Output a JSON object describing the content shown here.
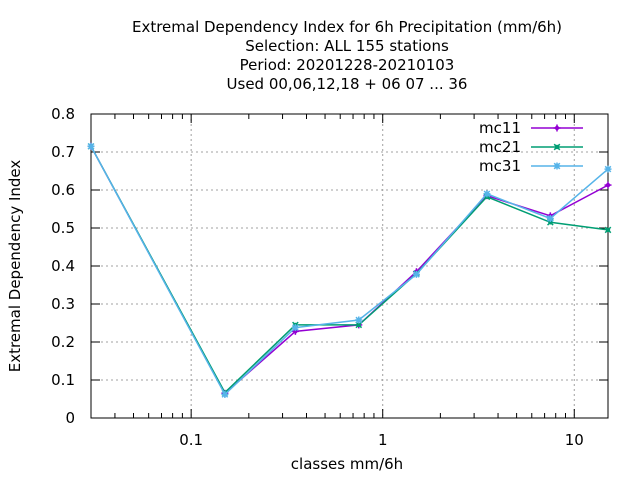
{
  "chart_data": {
    "type": "line",
    "title_lines": [
      "Extremal Dependency Index  for 6h Precipitation (mm/6h)",
      "Selection: ALL    155 stations",
      "Period: 20201228-20210103",
      "Used  00,06,12,18 + 06 07 ... 36"
    ],
    "xlabel": "classes mm/6h",
    "ylabel": "Extremal Dependency Index",
    "x_scale": "log",
    "xlim": [
      0.03,
      15
    ],
    "ylim": [
      0,
      0.8
    ],
    "x_ticks": [
      {
        "value": 0.1,
        "label": "0.1"
      },
      {
        "value": 1,
        "label": "1"
      },
      {
        "value": 10,
        "label": "10"
      }
    ],
    "y_ticks": [
      {
        "value": 0,
        "label": "0"
      },
      {
        "value": 0.1,
        "label": "0.1"
      },
      {
        "value": 0.2,
        "label": "0.2"
      },
      {
        "value": 0.3,
        "label": "0.3"
      },
      {
        "value": 0.4,
        "label": "0.4"
      },
      {
        "value": 0.5,
        "label": "0.5"
      },
      {
        "value": 0.6,
        "label": "0.6"
      },
      {
        "value": 0.7,
        "label": "0.7"
      },
      {
        "value": 0.8,
        "label": "0.8"
      }
    ],
    "grid": true,
    "legend_position": "top-right",
    "x": [
      0.03,
      0.15,
      0.35,
      0.75,
      1.5,
      3.5,
      7.5,
      15
    ],
    "series": [
      {
        "name": "mc11",
        "color": "#9400d3",
        "marker": "plus",
        "values": [
          0.715,
          0.065,
          0.228,
          0.245,
          0.385,
          0.585,
          0.532,
          0.613
        ]
      },
      {
        "name": "mc21",
        "color": "#009e73",
        "marker": "cross",
        "values": [
          0.715,
          0.067,
          0.245,
          0.245,
          0.38,
          0.582,
          0.515,
          0.495
        ]
      },
      {
        "name": "mc31",
        "color": "#56b4e9",
        "marker": "star",
        "values": [
          0.715,
          0.062,
          0.238,
          0.258,
          0.378,
          0.59,
          0.525,
          0.655
        ]
      }
    ]
  }
}
